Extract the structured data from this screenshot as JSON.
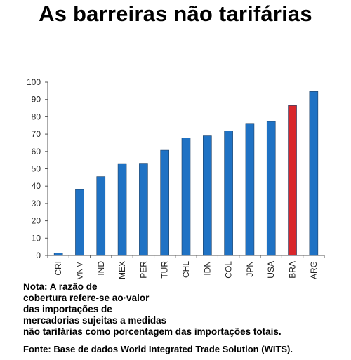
{
  "title": "As barreiras não tarifárias",
  "note_lines": [
    "Nota: A razão de",
    "cobertura refere-se ao·valor",
    "das importações de",
    "mercadorias sujeitas a medidas",
    "não tarifárias como porcentagem das importações totais."
  ],
  "source": "Fonte: Base de dados World Integrated Trade Solution (WITS).",
  "colors": {
    "default_bar": "#1f72c4",
    "highlight_bar": "#d9262b",
    "axis": "#555555"
  },
  "chart_data": {
    "type": "bar",
    "title": "",
    "xlabel": "",
    "ylabel": "",
    "ylim": [
      0,
      100
    ],
    "yticks": [
      0,
      10,
      20,
      30,
      40,
      50,
      60,
      70,
      80,
      90,
      100
    ],
    "grid": false,
    "categories": [
      "CRI",
      "VNM",
      "IND",
      "MEX",
      "PER",
      "TUR",
      "CHL",
      "IDN",
      "COL",
      "JPN",
      "USA",
      "BRA",
      "ARG"
    ],
    "values": [
      1.5,
      38,
      45.5,
      53,
      53.2,
      60.7,
      67.8,
      69,
      71.8,
      76.2,
      77.3,
      86.5,
      94.6
    ],
    "highlight": "BRA"
  }
}
